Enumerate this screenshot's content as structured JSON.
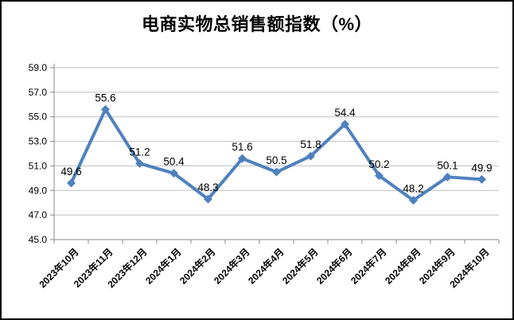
{
  "chart_data": {
    "type": "line",
    "title": "电商实物总销售额指数（%）",
    "categories": [
      "2023年10月",
      "2023年11月",
      "2023年12月",
      "2024年1月",
      "2024年2月",
      "2024年3月",
      "2024年4月",
      "2024年5月",
      "2024年6月",
      "2024年7月",
      "2024年8月",
      "2024年9月",
      "2024年10月"
    ],
    "values": [
      49.6,
      55.6,
      51.2,
      50.4,
      48.3,
      51.6,
      50.5,
      51.8,
      54.4,
      50.2,
      48.2,
      50.1,
      49.9
    ],
    "data_labels": [
      "49.6",
      "55.6",
      "51.2",
      "50.4",
      "48.3",
      "51.6",
      "50.5",
      "51.8",
      "54.4",
      "50.2",
      "48.2",
      "50.1",
      "49.9"
    ],
    "xlabel": "",
    "ylabel": "",
    "ylim": [
      45.0,
      59.0
    ],
    "ytick_step": 2.0,
    "ytick_labels": [
      "45.0",
      "47.0",
      "49.0",
      "51.0",
      "53.0",
      "55.0",
      "57.0",
      "59.0"
    ],
    "grid": true,
    "legend": "none",
    "marker": "diamond",
    "colors": {
      "series": "#4F81BD",
      "gridline": "#BFBFBF",
      "axis": "#898989",
      "text": "#000000",
      "frame_border": "#000000",
      "background": "#FFFFFF"
    }
  }
}
